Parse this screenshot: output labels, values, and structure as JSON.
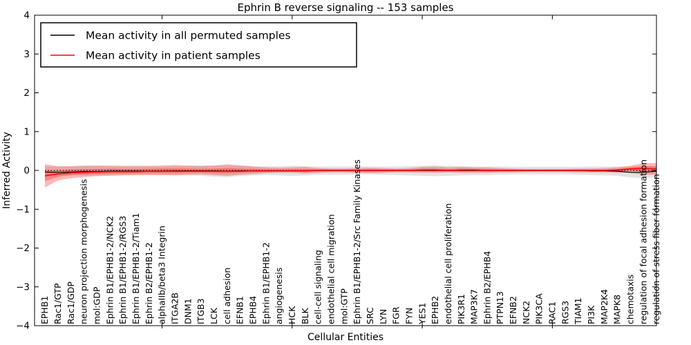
{
  "figure": {
    "title": "Ephrin B reverse signaling -- 153 samples",
    "background": "#ffffff"
  },
  "chart_data": {
    "type": "line",
    "title": "Ephrin B reverse signaling -- 153 samples",
    "xlabel": "Cellular Entities",
    "ylabel": "Inferred Activity",
    "ylim": [
      -4,
      4
    ],
    "yticks": [
      -4,
      -3,
      -2,
      -1,
      0,
      1,
      2,
      3,
      4
    ],
    "x_major_tick_indices": [
      9,
      19,
      29,
      39
    ],
    "grid": false,
    "legend": {
      "position": "upper left",
      "entries": [
        {
          "label": "Mean activity in all permuted samples",
          "color": "#000000"
        },
        {
          "label": "Mean activity in patient samples",
          "color": "#ff0000"
        }
      ]
    },
    "zero_line": {
      "y": 0,
      "style": "dotted",
      "color": "#000000"
    },
    "categories": [
      "EPHB1",
      "Rac1/GTP",
      "Rac1/GDP",
      "neuron projection morphogenesis",
      "mol:GDP",
      "Ephrin B1/EPHB1-2/NCK2",
      "Ephrin B1/EPHB1-2/RGS3",
      "Ephrin B1/EPHB1-2/Tiam1",
      "Ephrin B2/EPHB1-2",
      "alphaIIb/beta3 Integrin",
      "ITGA2B",
      "DNM1",
      "ITGB3",
      "LCK",
      "cell adhesion",
      "EFNB1",
      "EPHB4",
      "Ephrin B1/EPHB1-2",
      "angiogenesis",
      "HCK",
      "BLK",
      "cell-cell signaling",
      "endothelial cell migration",
      "mol:GTP",
      "Ephrin B1/EPHB1-2/Src Family Kinases",
      "SRC",
      "LYN",
      "FGR",
      "FYN",
      "YES1",
      "EPHB2",
      "endothelial cell proliferation",
      "PIK3R1",
      "MAP3K7",
      "Ephrin B2/EPHB4",
      "PTPN13",
      "EFNB2",
      "NCK2",
      "PIK3CA",
      "RAC1",
      "RGS3",
      "TIAM1",
      "PI3K",
      "MAP2K4",
      "MAPK8",
      "chemotaxis",
      "regulation of focal adhesion formation",
      "regulation of stress fiber formation"
    ],
    "series": [
      {
        "name": "Mean activity in all permuted samples",
        "color": "#000000",
        "style": "solid",
        "values": [
          -0.04,
          -0.05,
          -0.04,
          -0.03,
          -0.03,
          -0.02,
          -0.02,
          -0.02,
          -0.02,
          -0.02,
          -0.01,
          -0.01,
          -0.01,
          -0.01,
          -0.02,
          -0.01,
          -0.01,
          -0.01,
          -0.01,
          -0.01,
          -0.01,
          0,
          0,
          0,
          0,
          0,
          0,
          0,
          0,
          0,
          0,
          0,
          0,
          0,
          0,
          0,
          0,
          0,
          0,
          0,
          0,
          0,
          -0.01,
          -0.01,
          -0.02,
          -0.05,
          -0.05,
          -0.02
        ]
      },
      {
        "name": "Mean activity in patient samples",
        "color": "#ff0000",
        "style": "solid",
        "values": [
          -0.14,
          -0.09,
          -0.06,
          -0.05,
          -0.04,
          -0.03,
          -0.03,
          -0.03,
          -0.02,
          -0.02,
          -0.02,
          -0.02,
          -0.02,
          -0.02,
          -0.02,
          -0.02,
          -0.01,
          -0.01,
          -0.01,
          -0.01,
          -0.01,
          0,
          0,
          0,
          0,
          0,
          0,
          0,
          0,
          0.01,
          0.01,
          0,
          0.01,
          0.01,
          0,
          0,
          0,
          0,
          0,
          0,
          0,
          0,
          0,
          0,
          0.01,
          0.04,
          0.05,
          0.04
        ]
      }
    ],
    "bands": [
      {
        "name": "permuted sample range",
        "color": "#808080",
        "opacity": 0.22,
        "upper": [
          0.1,
          0.1,
          0.1,
          0.12,
          0.11,
          0.1,
          0.1,
          0.1,
          0.1,
          0.1,
          0.11,
          0.11,
          0.11,
          0.12,
          0.13,
          0.12,
          0.11,
          0.1,
          0.11,
          0.12,
          0.11,
          0.1,
          0.1,
          0.1,
          0.1,
          0.1,
          0.1,
          0.1,
          0.11,
          0.12,
          0.13,
          0.12,
          0.11,
          0.1,
          0.1,
          0.1,
          0.09,
          0.09,
          0.09,
          0.09,
          0.09,
          0.09,
          0.1,
          0.1,
          0.1,
          0.1,
          0.1,
          0.1
        ],
        "lower": [
          -0.12,
          -0.12,
          -0.12,
          -0.14,
          -0.13,
          -0.12,
          -0.11,
          -0.11,
          -0.11,
          -0.12,
          -0.13,
          -0.13,
          -0.14,
          -0.16,
          -0.17,
          -0.15,
          -0.13,
          -0.12,
          -0.13,
          -0.14,
          -0.13,
          -0.11,
          -0.11,
          -0.11,
          -0.1,
          -0.1,
          -0.11,
          -0.12,
          -0.13,
          -0.14,
          -0.15,
          -0.14,
          -0.13,
          -0.12,
          -0.12,
          -0.11,
          -0.1,
          -0.1,
          -0.1,
          -0.1,
          -0.1,
          -0.11,
          -0.12,
          -0.13,
          -0.14,
          -0.18,
          -0.2,
          -0.18
        ]
      },
      {
        "name": "patient sample range",
        "color": "#ff0000",
        "opacity": 0.28,
        "inner_band_scale": 0.45,
        "upper": [
          0.16,
          0.11,
          0.11,
          0.12,
          0.13,
          0.13,
          0.12,
          0.12,
          0.12,
          0.13,
          0.14,
          0.13,
          0.12,
          0.13,
          0.16,
          0.13,
          0.1,
          0.08,
          0.07,
          0.08,
          0.09,
          0.06,
          0.05,
          0.05,
          0.06,
          0.07,
          0.06,
          0.05,
          0.06,
          0.09,
          0.1,
          0.08,
          0.09,
          0.08,
          0.08,
          0.06,
          0.05,
          0.04,
          0.04,
          0.04,
          0.04,
          0.05,
          0.05,
          0.06,
          0.08,
          0.12,
          0.19,
          0.19
        ],
        "lower": [
          -0.44,
          -0.26,
          -0.2,
          -0.17,
          -0.15,
          -0.14,
          -0.13,
          -0.12,
          -0.12,
          -0.12,
          -0.12,
          -0.11,
          -0.1,
          -0.12,
          -0.14,
          -0.11,
          -0.09,
          -0.07,
          -0.06,
          -0.06,
          -0.08,
          -0.06,
          -0.05,
          -0.05,
          -0.06,
          -0.07,
          -0.06,
          -0.05,
          -0.05,
          -0.06,
          -0.06,
          -0.05,
          -0.06,
          -0.06,
          -0.06,
          -0.05,
          -0.05,
          -0.04,
          -0.04,
          -0.04,
          -0.04,
          -0.05,
          -0.05,
          -0.05,
          -0.06,
          -0.06,
          -0.11,
          -0.11
        ]
      }
    ]
  }
}
